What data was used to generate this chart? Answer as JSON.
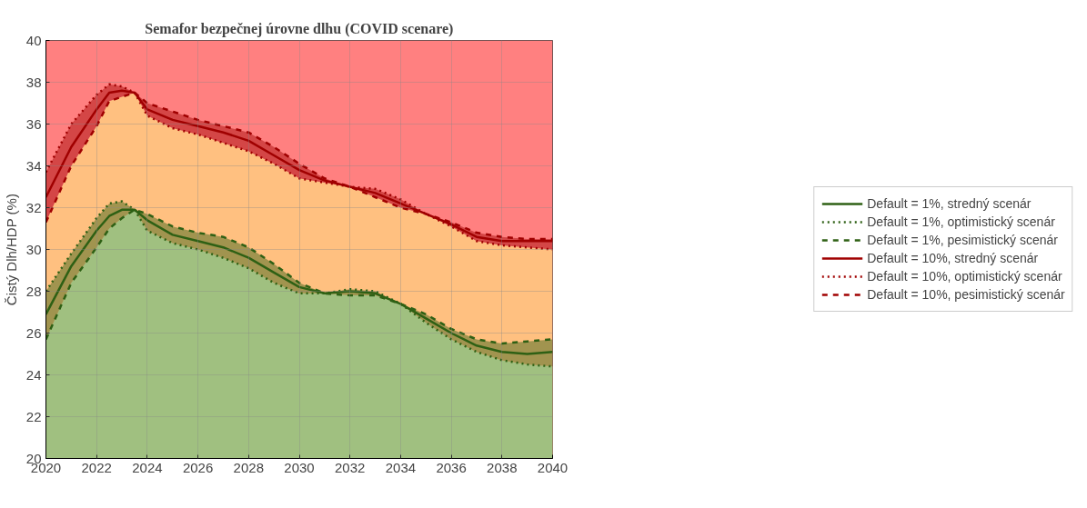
{
  "chart_data": {
    "type": "line",
    "title": "Semafor bezpečnej úrovne dlhu (COVID scenare)",
    "ylabel": "Čistý Dlh/HDP (%)",
    "x": [
      2020,
      2021,
      2022,
      2022.5,
      2023,
      2023.5,
      2024,
      2025,
      2026,
      2027,
      2028,
      2029,
      2030,
      2031,
      2032,
      2033,
      2034,
      2035,
      2036,
      2037,
      2038,
      2039,
      2040
    ],
    "xlim": [
      2020,
      2040
    ],
    "xticks": [
      2020,
      2022,
      2024,
      2026,
      2028,
      2030,
      2032,
      2034,
      2036,
      2038,
      2040
    ],
    "ylim": [
      20,
      40
    ],
    "yticks": [
      20,
      22,
      24,
      26,
      28,
      30,
      32,
      34,
      36,
      38,
      40
    ],
    "grid": true,
    "legend": "right",
    "bands": [
      {
        "axis": "y",
        "from": 20,
        "to": 40,
        "color": "#ff8080"
      }
    ],
    "series": [
      {
        "type": "area",
        "color": "#ffc080",
        "values": [
          31.3,
          34.0,
          35.9,
          37.1,
          37.3,
          37.5,
          36.4,
          35.8,
          35.5,
          35.1,
          34.7,
          34.1,
          33.4,
          33.2,
          33.0,
          32.5,
          32.0,
          31.7,
          31.1,
          30.4,
          30.2,
          30.1,
          30.0
        ]
      },
      {
        "type": "area",
        "color": "#a0c080",
        "values": [
          25.7,
          28.4,
          30.1,
          31.0,
          31.5,
          31.9,
          30.9,
          30.3,
          30.0,
          29.6,
          29.1,
          28.4,
          27.9,
          27.9,
          27.8,
          27.8,
          27.4,
          26.5,
          25.7,
          25.1,
          24.7,
          24.5,
          24.4
        ]
      },
      {
        "name": "Default = 1%, stredný scenár",
        "color": "#2e6014",
        "line_style": "solid",
        "values": [
          26.9,
          29.2,
          30.9,
          31.6,
          31.9,
          31.9,
          31.4,
          30.7,
          30.4,
          30.1,
          29.6,
          28.9,
          28.2,
          27.9,
          28.0,
          27.9,
          27.4,
          26.7,
          26.0,
          25.4,
          25.1,
          25.0,
          25.1
        ],
        "lower": [
          25.7,
          28.4,
          30.1,
          31.0,
          31.5,
          31.9,
          30.9,
          30.3,
          30.0,
          29.6,
          29.1,
          28.4,
          27.9,
          27.9,
          27.8,
          27.8,
          27.4,
          26.5,
          25.7,
          25.1,
          24.7,
          24.5,
          24.4
        ],
        "upper": [
          28.0,
          29.8,
          31.5,
          32.2,
          32.3,
          31.9,
          31.7,
          31.1,
          30.8,
          30.6,
          30.1,
          29.3,
          28.4,
          27.9,
          28.1,
          28.0,
          27.4,
          26.9,
          26.2,
          25.7,
          25.5,
          25.6,
          25.7
        ]
      },
      {
        "name": "Default = 1%, optimistický scenár",
        "color": "#2e6014",
        "line_style": "dotted",
        "values": [
          28.0,
          29.8,
          31.5,
          32.2,
          32.3,
          31.9,
          30.9,
          30.3,
          30.0,
          29.6,
          29.1,
          28.4,
          27.9,
          27.9,
          28.1,
          28.0,
          27.4,
          26.5,
          25.7,
          25.1,
          24.7,
          24.5,
          24.4
        ]
      },
      {
        "name": "Default = 1%, pesimistický scenár",
        "color": "#2e6014",
        "line_style": "dashed",
        "values": [
          25.7,
          28.4,
          30.1,
          31.0,
          31.5,
          31.9,
          31.7,
          31.1,
          30.8,
          30.6,
          30.1,
          29.3,
          28.4,
          27.9,
          27.8,
          27.8,
          27.4,
          26.9,
          26.2,
          25.7,
          25.5,
          25.6,
          25.7
        ]
      },
      {
        "name": "Default = 10%, stredný scenár",
        "color": "#a00000",
        "line_style": "solid",
        "values": [
          32.5,
          34.9,
          36.7,
          37.5,
          37.6,
          37.5,
          36.7,
          36.2,
          35.9,
          35.6,
          35.2,
          34.5,
          33.8,
          33.3,
          33.0,
          32.7,
          32.2,
          31.7,
          31.2,
          30.6,
          30.4,
          30.4,
          30.4
        ],
        "lower": [
          31.3,
          34.0,
          35.9,
          37.1,
          37.3,
          37.5,
          36.4,
          35.8,
          35.5,
          35.1,
          34.7,
          34.1,
          33.4,
          33.2,
          33.0,
          32.5,
          32.0,
          31.7,
          31.1,
          30.4,
          30.2,
          30.1,
          30.0
        ],
        "upper": [
          33.7,
          36.0,
          37.4,
          37.9,
          37.8,
          37.5,
          37.0,
          36.6,
          36.2,
          35.9,
          35.6,
          34.9,
          34.1,
          33.4,
          33.0,
          32.9,
          32.4,
          31.7,
          31.3,
          30.8,
          30.6,
          30.5,
          30.5
        ]
      },
      {
        "name": "Default = 10%, optimistický scenár",
        "color": "#a00000",
        "line_style": "dotted",
        "values": [
          33.7,
          36.0,
          37.4,
          37.9,
          37.8,
          37.5,
          36.4,
          35.8,
          35.5,
          35.1,
          34.7,
          34.1,
          33.4,
          33.2,
          33.0,
          32.9,
          32.4,
          31.7,
          31.1,
          30.4,
          30.2,
          30.1,
          30.0
        ]
      },
      {
        "name": "Default = 10%, pesimistický scenár",
        "color": "#a00000",
        "line_style": "dashed",
        "values": [
          31.3,
          34.0,
          35.9,
          37.1,
          37.3,
          37.5,
          37.0,
          36.6,
          36.2,
          35.9,
          35.6,
          34.9,
          34.1,
          33.4,
          33.0,
          32.5,
          32.0,
          31.7,
          31.3,
          30.8,
          30.6,
          30.5,
          30.5
        ]
      }
    ]
  }
}
